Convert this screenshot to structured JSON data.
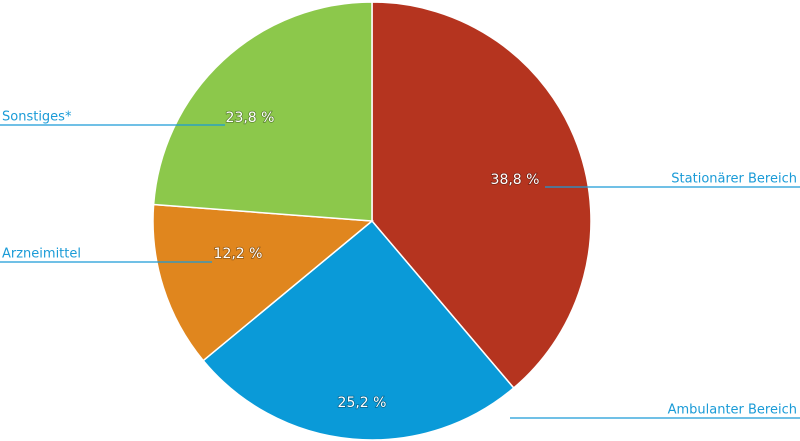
{
  "chart_data": {
    "type": "pie",
    "categories": [
      "Stationärer Bereich",
      "Ambulanter Bereich",
      "Arzneimittel",
      "Sonstiges*"
    ],
    "values": [
      38.8,
      25.2,
      12.2,
      23.8
    ],
    "value_labels": [
      "38,8 %",
      "25,2 %",
      "12,2 %",
      "23,8 %"
    ],
    "colors": [
      "#b5341f",
      "#0a9ad8",
      "#e0861e",
      "#8cc84b"
    ]
  }
}
